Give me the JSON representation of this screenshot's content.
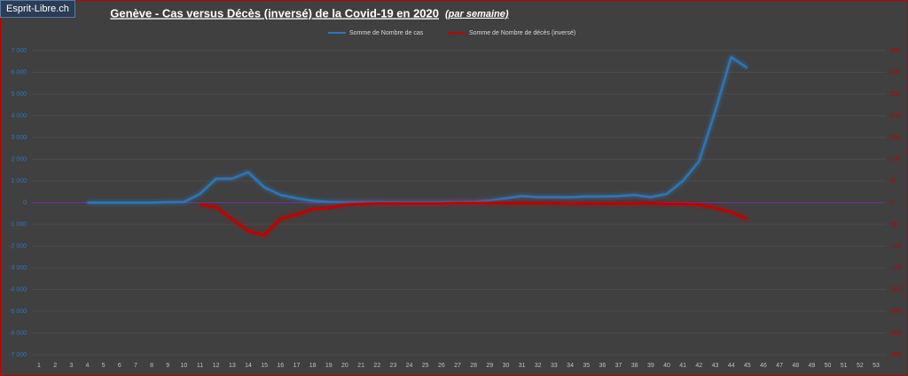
{
  "watermark": "Esprit-Libre.ch",
  "chart_data": {
    "type": "line",
    "title": "Genève - Cas versus Décès (inversé) de la Covid-19 en 2020",
    "subtitle": "(par semaine)",
    "categories": [
      "1",
      "2",
      "3",
      "4",
      "5",
      "6",
      "7",
      "8",
      "9",
      "10",
      "11",
      "12",
      "13",
      "14",
      "15",
      "16",
      "17",
      "18",
      "19",
      "20",
      "21",
      "22",
      "23",
      "24",
      "25",
      "26",
      "27",
      "28",
      "29",
      "30",
      "31",
      "32",
      "33",
      "34",
      "35",
      "36",
      "37",
      "38",
      "39",
      "40",
      "41",
      "42",
      "43",
      "44",
      "45",
      "46",
      "47",
      "48",
      "49",
      "50",
      "51",
      "52",
      "53"
    ],
    "series": [
      {
        "name": "Somme de Nombre de cas",
        "color": "#2e75b6",
        "values": [
          null,
          null,
          null,
          0,
          0,
          0,
          0,
          0,
          20,
          30,
          400,
          1100,
          1100,
          1400,
          700,
          350,
          200,
          80,
          30,
          20,
          30,
          30,
          20,
          20,
          20,
          20,
          30,
          40,
          100,
          200,
          300,
          250,
          250,
          250,
          280,
          280,
          300,
          350,
          250,
          400,
          1000,
          1900,
          4200,
          6700,
          6200,
          null,
          null,
          null,
          null,
          null,
          null,
          null,
          null
        ]
      },
      {
        "name": "Somme de Nombre de décès (inversé)",
        "color": "#c00000",
        "axis": "y2",
        "values": [
          null,
          null,
          null,
          null,
          null,
          null,
          null,
          null,
          null,
          null,
          -5,
          -10,
          -38,
          -65,
          -75,
          -37,
          -28,
          -15,
          -12,
          -5,
          -3,
          -2,
          -2,
          -2,
          -2,
          -2,
          -1,
          -1,
          -1,
          -1,
          -1,
          -1,
          -1,
          -2,
          -2,
          -2,
          -2,
          -2,
          -1,
          -3,
          -3,
          -5,
          -12,
          -22,
          -38,
          null,
          null,
          null,
          null,
          null,
          null,
          null,
          null
        ]
      }
    ],
    "ylim": [
      -7000,
      7000
    ],
    "yticks": [
      {
        "value": 7000,
        "label": "7 000"
      },
      {
        "value": 6000,
        "label": "6 000"
      },
      {
        "value": 5000,
        "label": "5 000"
      },
      {
        "value": 4000,
        "label": "4 000"
      },
      {
        "value": 3000,
        "label": "3 000"
      },
      {
        "value": 2000,
        "label": "2 000"
      },
      {
        "value": 1000,
        "label": "1 000"
      },
      0,
      {
        "value": -1000,
        "label": "-1 000"
      },
      {
        "value": -2000,
        "label": "-2 000"
      },
      {
        "value": -3000,
        "label": "-3 000"
      },
      {
        "value": -4000,
        "label": "-4 000"
      },
      {
        "value": -5000,
        "label": "-5 000"
      },
      {
        "value": -6000,
        "label": "-6 000"
      },
      {
        "value": -7000,
        "label": "-7 000"
      }
    ],
    "y2lim": [
      -350,
      350
    ],
    "y2ticks": [
      350,
      300,
      250,
      200,
      150,
      100,
      50,
      0,
      -50,
      -100,
      -150,
      -200,
      -250,
      -300,
      -350
    ],
    "grid": true,
    "zero_line_color": "#7030a0",
    "legend": "top"
  }
}
